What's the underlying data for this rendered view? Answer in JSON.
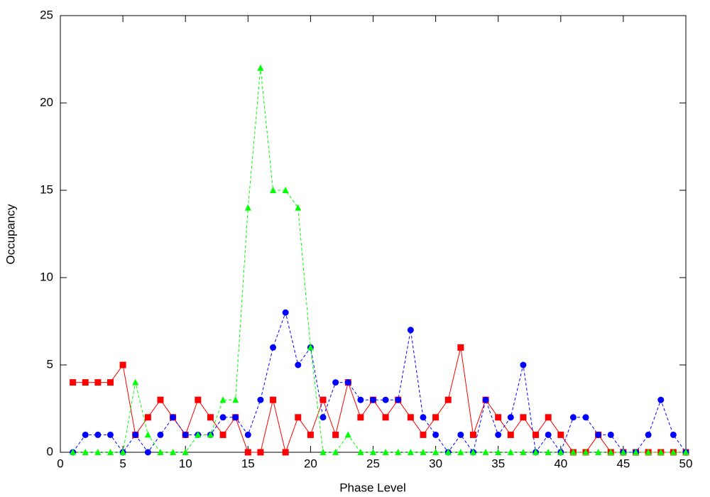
{
  "chart_data": {
    "type": "line",
    "x_label": "Phase Level",
    "y_label": "Occupancy",
    "x": [
      1,
      2,
      3,
      4,
      5,
      6,
      7,
      8,
      9,
      10,
      11,
      12,
      13,
      14,
      15,
      16,
      17,
      18,
      19,
      20,
      21,
      22,
      23,
      24,
      25,
      26,
      27,
      28,
      29,
      30,
      31,
      32,
      33,
      34,
      35,
      36,
      37,
      38,
      39,
      40,
      41,
      42,
      43,
      44,
      45,
      46,
      47,
      48,
      49,
      50
    ],
    "series": [
      {
        "color": "#ff0000",
        "marker": "square",
        "line_style": "solid",
        "values": [
          4,
          4,
          4,
          4,
          5,
          1,
          2,
          3,
          2,
          1,
          3,
          2,
          1,
          2,
          0,
          0,
          3,
          0,
          2,
          1,
          3,
          1,
          4,
          2,
          3,
          2,
          3,
          2,
          1,
          2,
          3,
          6,
          1,
          3,
          2,
          1,
          2,
          1,
          2,
          1,
          0,
          0,
          1,
          0,
          0,
          0,
          0,
          0,
          0,
          0
        ]
      },
      {
        "color": "#0000ff",
        "marker": "circle",
        "line_style": "dashed",
        "values": [
          0,
          1,
          1,
          1,
          0,
          1,
          0,
          1,
          2,
          1,
          1,
          1,
          2,
          2,
          1,
          3,
          6,
          8,
          5,
          6,
          2,
          4,
          4,
          3,
          3,
          3,
          3,
          7,
          2,
          1,
          0,
          1,
          0,
          3,
          1,
          2,
          5,
          0,
          1,
          0,
          2,
          2,
          1,
          1,
          0,
          0,
          1,
          3,
          1,
          0
        ]
      },
      {
        "color": "#00ff00",
        "marker": "triangle",
        "line_style": "dashed",
        "values": [
          0,
          0,
          0,
          0,
          0,
          4,
          1,
          0,
          0,
          0,
          1,
          1,
          3,
          3,
          14,
          22,
          15,
          15,
          14,
          6,
          0,
          0,
          1,
          0,
          0,
          0,
          0,
          0,
          0,
          0,
          0,
          0,
          0,
          0,
          0,
          0,
          0,
          0,
          0,
          0,
          0,
          0,
          0,
          0,
          0,
          0,
          0,
          0,
          0,
          0
        ]
      }
    ],
    "xlim": [
      0,
      50
    ],
    "xticks": [
      0,
      5,
      10,
      15,
      20,
      25,
      30,
      35,
      40,
      45,
      50
    ],
    "ylim": [
      0,
      25
    ],
    "yticks": [
      0,
      5,
      10,
      15,
      20,
      25
    ],
    "grid": false
  }
}
